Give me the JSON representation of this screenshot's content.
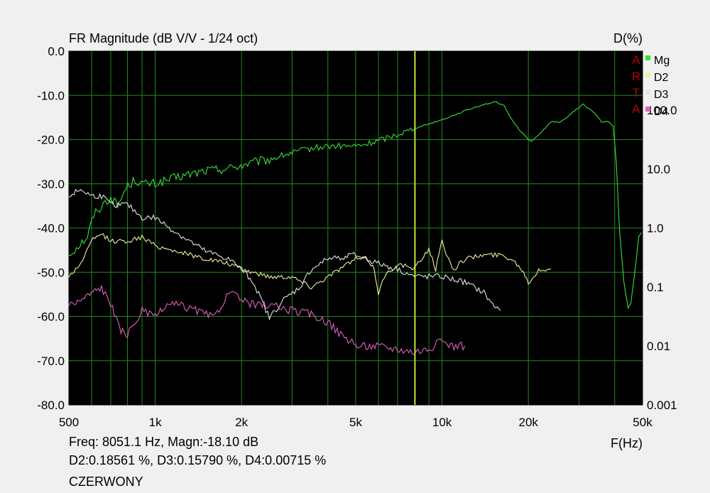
{
  "chart_data": {
    "type": "line",
    "title": "FR Magnitude (dB V/V - 1/24 oct)",
    "right_axis_title": "D(%)",
    "xlabel": "F(Hz)",
    "x_scale": "log",
    "xlim": [
      500,
      50000
    ],
    "ylim": [
      -80,
      0
    ],
    "y2_scale": "log",
    "y2lim": [
      0.001,
      1000
    ],
    "x_ticks": [
      {
        "value": 500,
        "label": "500"
      },
      {
        "value": 1000,
        "label": "1k"
      },
      {
        "value": 2000,
        "label": "2k"
      },
      {
        "value": 5000,
        "label": "5k"
      },
      {
        "value": 10000,
        "label": "10k"
      },
      {
        "value": 20000,
        "label": "20k"
      },
      {
        "value": 50000,
        "label": "50k"
      }
    ],
    "y_ticks": [
      {
        "value": 0,
        "label": "0.0"
      },
      {
        "value": -10,
        "label": "-10.0"
      },
      {
        "value": -20,
        "label": "-20.0"
      },
      {
        "value": -30,
        "label": "-30.0"
      },
      {
        "value": -40,
        "label": "-40.0"
      },
      {
        "value": -50,
        "label": "-50.0"
      },
      {
        "value": -60,
        "label": "-60.0"
      },
      {
        "value": -70,
        "label": "-70.0"
      },
      {
        "value": -80,
        "label": "-80.0"
      }
    ],
    "y2_ticks": [
      {
        "value": 100,
        "label": "100.0"
      },
      {
        "value": 10,
        "label": "10.0"
      },
      {
        "value": 1,
        "label": "1.0"
      },
      {
        "value": 0.1,
        "label": "0.1"
      },
      {
        "value": 0.01,
        "label": "0.01"
      },
      {
        "value": 0.001,
        "label": "0.001"
      }
    ],
    "grid": true,
    "cursor_freq": 8051.1,
    "series": [
      {
        "name": "Mg",
        "color": "#38e038",
        "axis": "left",
        "noise": 0.7,
        "points": [
          [
            500,
            -46
          ],
          [
            540,
            -44
          ],
          [
            580,
            -42
          ],
          [
            610,
            -37
          ],
          [
            650,
            -35
          ],
          [
            700,
            -33
          ],
          [
            740,
            -35
          ],
          [
            790,
            -31
          ],
          [
            850,
            -29
          ],
          [
            900,
            -30
          ],
          [
            1000,
            -30
          ],
          [
            1200,
            -28.5
          ],
          [
            1500,
            -27
          ],
          [
            1800,
            -26.5
          ],
          [
            2100,
            -25.5
          ],
          [
            2500,
            -24.5
          ],
          [
            3000,
            -23
          ],
          [
            3500,
            -22
          ],
          [
            4000,
            -21.5
          ],
          [
            4500,
            -21.5
          ],
          [
            5000,
            -21.5
          ],
          [
            5500,
            -21
          ],
          [
            6500,
            -19.5
          ],
          [
            8000,
            -17.5
          ],
          [
            10000,
            -15.5
          ],
          [
            12000,
            -13.5
          ],
          [
            14000,
            -12
          ],
          [
            15500,
            -11.5
          ],
          [
            16500,
            -12.5
          ],
          [
            17500,
            -15.5
          ],
          [
            19000,
            -18.5
          ],
          [
            20500,
            -20.5
          ],
          [
            22000,
            -18.5
          ],
          [
            24000,
            -16
          ],
          [
            26000,
            -16
          ],
          [
            29000,
            -13.5
          ],
          [
            31000,
            -12
          ],
          [
            34000,
            -14
          ],
          [
            36000,
            -16
          ],
          [
            38000,
            -16
          ],
          [
            39500,
            -17
          ],
          [
            40500,
            -25
          ],
          [
            41500,
            -40
          ],
          [
            43000,
            -52
          ],
          [
            44500,
            -58
          ],
          [
            45500,
            -57
          ],
          [
            47000,
            -50
          ],
          [
            48500,
            -42
          ],
          [
            49500,
            -41
          ]
        ]
      },
      {
        "name": "D2",
        "color": "#f0f0a0",
        "axis": "right",
        "noise": 0.04,
        "points": [
          [
            500,
            0.15
          ],
          [
            550,
            0.25
          ],
          [
            600,
            0.6
          ],
          [
            650,
            0.8
          ],
          [
            700,
            0.6
          ],
          [
            800,
            0.6
          ],
          [
            900,
            0.7
          ],
          [
            1000,
            0.5
          ],
          [
            1200,
            0.4
          ],
          [
            1500,
            0.3
          ],
          [
            1800,
            0.25
          ],
          [
            2000,
            0.2
          ],
          [
            2500,
            0.15
          ],
          [
            3000,
            0.15
          ],
          [
            3500,
            0.1
          ],
          [
            4000,
            0.15
          ],
          [
            4500,
            0.22
          ],
          [
            5000,
            0.3
          ],
          [
            5500,
            0.3
          ],
          [
            5800,
            0.2
          ],
          [
            6000,
            0.08
          ],
          [
            6300,
            0.15
          ],
          [
            7000,
            0.25
          ],
          [
            8000,
            0.2
          ],
          [
            8500,
            0.3
          ],
          [
            9000,
            0.45
          ],
          [
            9500,
            0.2
          ],
          [
            10000,
            0.6
          ],
          [
            10500,
            0.3
          ],
          [
            11000,
            0.2
          ],
          [
            12000,
            0.3
          ],
          [
            14000,
            0.35
          ],
          [
            16000,
            0.35
          ],
          [
            17500,
            0.3
          ],
          [
            19000,
            0.2
          ],
          [
            20000,
            0.12
          ],
          [
            22000,
            0.2
          ],
          [
            24000,
            0.2
          ]
        ]
      },
      {
        "name": "D3",
        "color": "#e4e4e4",
        "axis": "right",
        "noise": 0.05,
        "points": [
          [
            500,
            3.5
          ],
          [
            550,
            4.5
          ],
          [
            600,
            3.5
          ],
          [
            650,
            3.5
          ],
          [
            700,
            2.5
          ],
          [
            800,
            2.5
          ],
          [
            900,
            1.5
          ],
          [
            1000,
            1.5
          ],
          [
            1200,
            0.8
          ],
          [
            1500,
            0.4
          ],
          [
            1800,
            0.3
          ],
          [
            2000,
            0.2
          ],
          [
            2200,
            0.12
          ],
          [
            2500,
            0.03
          ],
          [
            2800,
            0.06
          ],
          [
            3200,
            0.1
          ],
          [
            3500,
            0.2
          ],
          [
            4000,
            0.3
          ],
          [
            5000,
            0.35
          ],
          [
            6000,
            0.25
          ],
          [
            7000,
            0.2
          ],
          [
            8000,
            0.15
          ],
          [
            9000,
            0.15
          ],
          [
            10000,
            0.15
          ],
          [
            12000,
            0.12
          ],
          [
            14000,
            0.08
          ],
          [
            15000,
            0.05
          ],
          [
            16000,
            0.04
          ]
        ]
      },
      {
        "name": "D4",
        "color": "#e060c0",
        "axis": "right",
        "noise": 0.07,
        "points": [
          [
            500,
            0.05
          ],
          [
            550,
            0.06
          ],
          [
            600,
            0.08
          ],
          [
            650,
            0.1
          ],
          [
            700,
            0.05
          ],
          [
            750,
            0.02
          ],
          [
            800,
            0.015
          ],
          [
            900,
            0.04
          ],
          [
            1000,
            0.03
          ],
          [
            1100,
            0.05
          ],
          [
            1200,
            0.05
          ],
          [
            1400,
            0.04
          ],
          [
            1600,
            0.03
          ],
          [
            1800,
            0.08
          ],
          [
            2000,
            0.06
          ],
          [
            2200,
            0.05
          ],
          [
            2500,
            0.05
          ],
          [
            3000,
            0.04
          ],
          [
            3500,
            0.035
          ],
          [
            4000,
            0.025
          ],
          [
            4500,
            0.015
          ],
          [
            5000,
            0.01
          ],
          [
            6000,
            0.01
          ],
          [
            7000,
            0.009
          ],
          [
            8000,
            0.008
          ],
          [
            9000,
            0.009
          ],
          [
            10000,
            0.012
          ],
          [
            11000,
            0.01
          ],
          [
            12000,
            0.01
          ]
        ]
      }
    ]
  },
  "logo": "ARTA",
  "readout": {
    "line1": "Freq: 8051.1 Hz, Magn:-18.10 dB",
    "line2": "D2:0.18561 %, D3:0.15790 %, D4:0.00715 %",
    "line3": "CZERWONY"
  }
}
